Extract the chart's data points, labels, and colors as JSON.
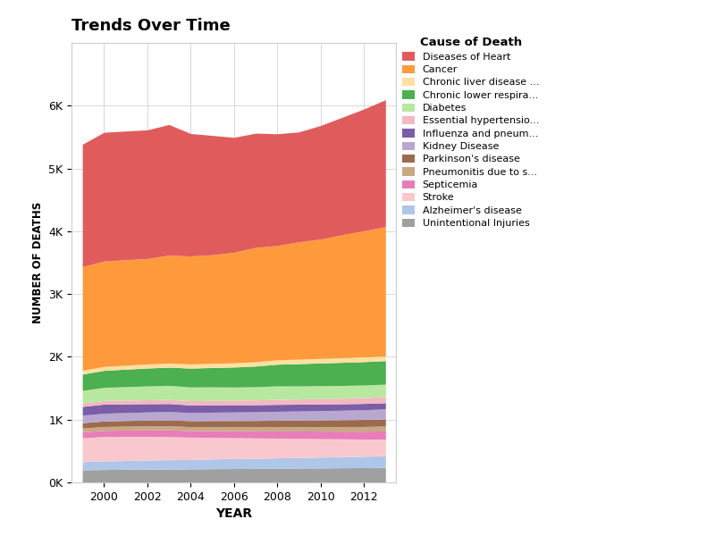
{
  "title": "Trends Over Time",
  "xlabel": "YEAR",
  "ylabel": "NUMBER OF DEATHS",
  "years": [
    1999,
    2000,
    2001,
    2002,
    2003,
    2004,
    2005,
    2006,
    2007,
    2008,
    2009,
    2010,
    2011,
    2012,
    2013
  ],
  "series": [
    {
      "label": "Unintentional Injuries",
      "color": "#a0a0a0",
      "values": [
        200,
        205,
        208,
        210,
        212,
        215,
        218,
        220,
        223,
        225,
        228,
        230,
        233,
        235,
        240
      ]
    },
    {
      "label": "Alzheimer's disease",
      "color": "#aec6e8",
      "values": [
        130,
        135,
        140,
        145,
        148,
        150,
        155,
        158,
        160,
        165,
        168,
        172,
        175,
        180,
        185
      ]
    },
    {
      "label": "Stroke",
      "color": "#f9c8ce",
      "values": [
        380,
        390,
        385,
        378,
        370,
        355,
        345,
        335,
        325,
        315,
        305,
        295,
        285,
        275,
        265
      ]
    },
    {
      "label": "Septicemia",
      "color": "#e87dba",
      "values": [
        95,
        98,
        100,
        103,
        106,
        105,
        108,
        110,
        112,
        115,
        118,
        120,
        123,
        126,
        130
      ]
    },
    {
      "label": "Pneumonitis due to s...",
      "color": "#c8a882",
      "values": [
        60,
        62,
        63,
        64,
        65,
        63,
        62,
        63,
        65,
        67,
        68,
        70,
        72,
        74,
        76
      ]
    },
    {
      "label": "Parkinson's disease",
      "color": "#9c6b4e",
      "values": [
        85,
        88,
        90,
        92,
        94,
        95,
        97,
        99,
        101,
        103,
        105,
        108,
        110,
        113,
        116
      ]
    },
    {
      "label": "Kidney Disease",
      "color": "#b8a8d0",
      "values": [
        120,
        123,
        126,
        129,
        132,
        130,
        133,
        136,
        139,
        142,
        145,
        148,
        151,
        154,
        158
      ]
    },
    {
      "label": "Influenza and pneum...",
      "color": "#7b5ea7",
      "values": [
        140,
        145,
        138,
        132,
        128,
        120,
        118,
        115,
        112,
        110,
        108,
        105,
        103,
        100,
        98
      ]
    },
    {
      "label": "Essential hypertensio...",
      "color": "#f4b8c0",
      "values": [
        55,
        58,
        60,
        63,
        65,
        67,
        70,
        73,
        76,
        80,
        83,
        87,
        90,
        94,
        98
      ]
    },
    {
      "label": "Diabetes",
      "color": "#b8e8a0",
      "values": [
        200,
        210,
        215,
        220,
        225,
        220,
        215,
        210,
        210,
        215,
        208,
        205,
        202,
        200,
        198
      ]
    },
    {
      "label": "Chronic lower respira...",
      "color": "#4caf50",
      "values": [
        260,
        270,
        278,
        285,
        290,
        300,
        308,
        318,
        330,
        345,
        355,
        362,
        368,
        372,
        375
      ]
    },
    {
      "label": "Chronic liver disease ...",
      "color": "#ffe0a0",
      "values": [
        60,
        62,
        63,
        64,
        65,
        66,
        67,
        68,
        69,
        70,
        71,
        72,
        73,
        74,
        75
      ]
    },
    {
      "label": "Cancer",
      "color": "#ff9a3c",
      "values": [
        1650,
        1680,
        1680,
        1680,
        1720,
        1720,
        1730,
        1760,
        1820,
        1820,
        1870,
        1900,
        1960,
        2010,
        2060
      ]
    },
    {
      "label": "Diseases of Heart",
      "color": "#e05c5c",
      "values": [
        1950,
        2050,
        2050,
        2050,
        2080,
        1950,
        1900,
        1830,
        1820,
        1780,
        1750,
        1810,
        1870,
        1940,
        2020
      ]
    }
  ],
  "yticks": [
    0,
    1000,
    2000,
    3000,
    4000,
    5000,
    6000
  ],
  "ytick_labels": [
    "0K",
    "1K",
    "2K",
    "3K",
    "4K",
    "5K",
    "6K"
  ],
  "legend_title": "Cause of Death",
  "legend_order": [
    "Diseases of Heart",
    "Cancer",
    "Chronic liver disease ...",
    "Chronic lower respira...",
    "Diabetes",
    "Essential hypertensio...",
    "Influenza and pneum...",
    "Kidney Disease",
    "Parkinson's disease",
    "Pneumonitis due to s...",
    "Septicemia",
    "Stroke",
    "Alzheimer's disease",
    "Unintentional Injuries"
  ],
  "background_color": "#ffffff",
  "plot_background": "#ffffff",
  "grid_color": "#d8d8d8"
}
